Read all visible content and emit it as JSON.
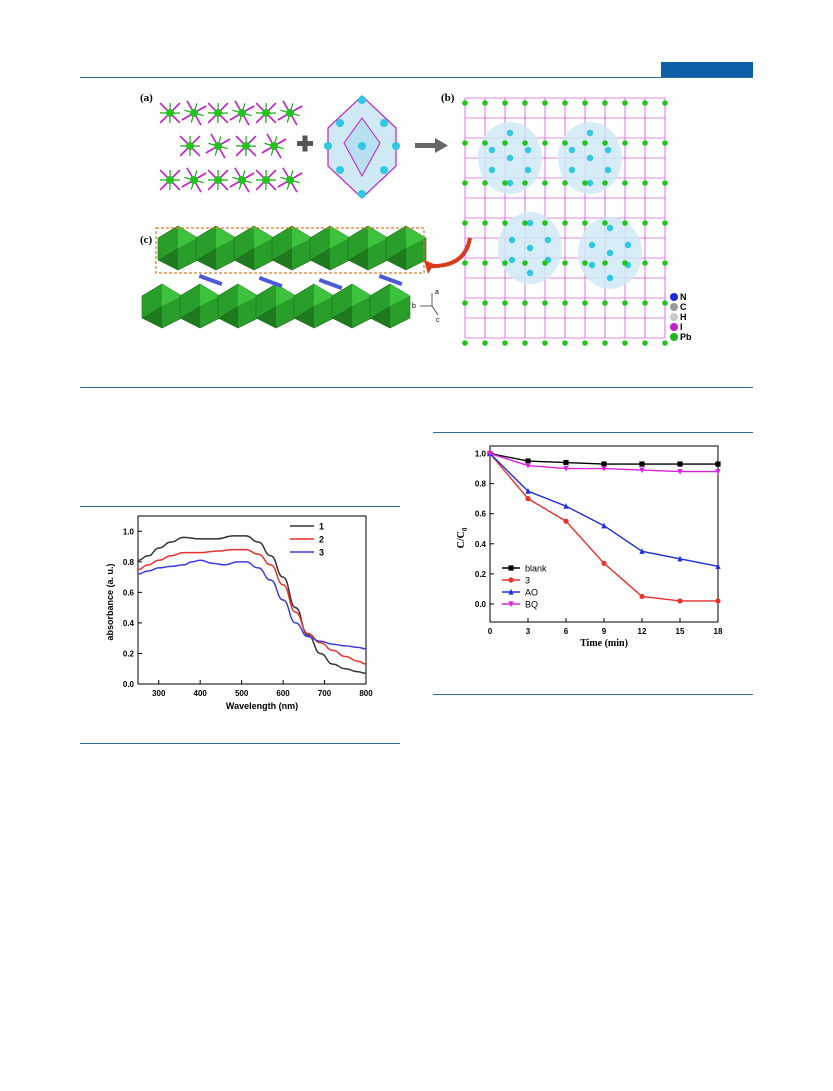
{
  "figure": {
    "panel_labels": {
      "a": "(a)",
      "b": "(b)",
      "c": "(c)"
    },
    "axes_labels": {
      "a": "a",
      "b": "b",
      "c": "c"
    },
    "element_legend": [
      {
        "label": "N",
        "color": "#1b2bd6"
      },
      {
        "label": "C",
        "color": "#9a9a9a"
      },
      {
        "label": "H",
        "color": "#c9c9c9"
      },
      {
        "label": "I",
        "color": "#c021c8"
      },
      {
        "label": "Pb",
        "color": "#22b51f"
      }
    ],
    "colors": {
      "Pb": "#22c41d",
      "I": "#c21ec8",
      "N": "#2ec8e0",
      "octahedra": "#2a9e2a",
      "highlight": "#cfe9f5"
    }
  },
  "chart_data": [
    {
      "type": "line",
      "title": "",
      "xlabel": "Wavelength (nm)",
      "ylabel": "absorbance (a. u.)",
      "xlim": [
        250,
        800
      ],
      "ylim": [
        0,
        1.1
      ],
      "xticks": [
        300,
        400,
        500,
        600,
        700,
        800
      ],
      "yticks": [
        0.0,
        0.2,
        0.4,
        0.6,
        0.8,
        1.0
      ],
      "ytick_labels": [
        "0.0",
        "0.2",
        "0.4",
        "0.6",
        "0.8",
        "1.0"
      ],
      "legend_position": "top-right",
      "series": [
        {
          "name": "1",
          "color": "#333333",
          "x": [
            250,
            275,
            300,
            330,
            360,
            400,
            440,
            480,
            510,
            540,
            570,
            600,
            630,
            660,
            690,
            720,
            750,
            780,
            800
          ],
          "y": [
            0.81,
            0.84,
            0.89,
            0.93,
            0.96,
            0.95,
            0.95,
            0.97,
            0.97,
            0.93,
            0.84,
            0.7,
            0.5,
            0.32,
            0.2,
            0.13,
            0.1,
            0.08,
            0.07
          ]
        },
        {
          "name": "2",
          "color": "#e8322c",
          "x": [
            250,
            275,
            300,
            330,
            360,
            400,
            440,
            480,
            510,
            540,
            570,
            600,
            630,
            660,
            690,
            720,
            750,
            780,
            800
          ],
          "y": [
            0.75,
            0.78,
            0.81,
            0.84,
            0.86,
            0.86,
            0.87,
            0.88,
            0.88,
            0.85,
            0.78,
            0.65,
            0.47,
            0.33,
            0.27,
            0.22,
            0.18,
            0.15,
            0.13
          ]
        },
        {
          "name": "3",
          "color": "#3c3cdc",
          "x": [
            250,
            275,
            300,
            330,
            360,
            380,
            400,
            430,
            460,
            490,
            510,
            540,
            570,
            600,
            630,
            660,
            690,
            720,
            750,
            780,
            800
          ],
          "y": [
            0.72,
            0.74,
            0.76,
            0.77,
            0.78,
            0.8,
            0.81,
            0.79,
            0.78,
            0.8,
            0.8,
            0.76,
            0.68,
            0.55,
            0.4,
            0.31,
            0.28,
            0.26,
            0.25,
            0.24,
            0.23
          ]
        }
      ]
    },
    {
      "type": "line",
      "title": "",
      "xlabel": "Time (min)",
      "ylabel": "C/C",
      "ylabel_sub": "0",
      "xlim": [
        0,
        18
      ],
      "ylim": [
        -0.12,
        1.05
      ],
      "xticks": [
        0,
        3,
        6,
        9,
        12,
        15,
        18
      ],
      "yticks": [
        0.0,
        0.2,
        0.4,
        0.6,
        0.8,
        1.0
      ],
      "ytick_labels": [
        "0.0",
        "0.2",
        "0.4",
        "0.6",
        "0.8",
        "1.0"
      ],
      "legend_position": "bottom-left",
      "series": [
        {
          "name": "blank",
          "color": "#000000",
          "marker": "square",
          "x": [
            0,
            3,
            6,
            9,
            12,
            15,
            18
          ],
          "y": [
            1.0,
            0.95,
            0.94,
            0.93,
            0.93,
            0.93,
            0.93
          ]
        },
        {
          "name": "3",
          "color": "#e8322c",
          "marker": "circle",
          "x": [
            0,
            3,
            6,
            9,
            12,
            15,
            18
          ],
          "y": [
            1.0,
            0.7,
            0.55,
            0.27,
            0.05,
            0.02,
            0.02
          ]
        },
        {
          "name": "AO",
          "color": "#2030e0",
          "marker": "triangle-up",
          "x": [
            0,
            3,
            6,
            9,
            12,
            15,
            18
          ],
          "y": [
            1.0,
            0.75,
            0.65,
            0.52,
            0.35,
            0.3,
            0.25
          ]
        },
        {
          "name": "BQ",
          "color": "#e020e0",
          "marker": "triangle-down",
          "x": [
            0,
            3,
            6,
            9,
            12,
            15,
            18
          ],
          "y": [
            1.0,
            0.92,
            0.9,
            0.9,
            0.89,
            0.88,
            0.88
          ]
        }
      ]
    }
  ]
}
